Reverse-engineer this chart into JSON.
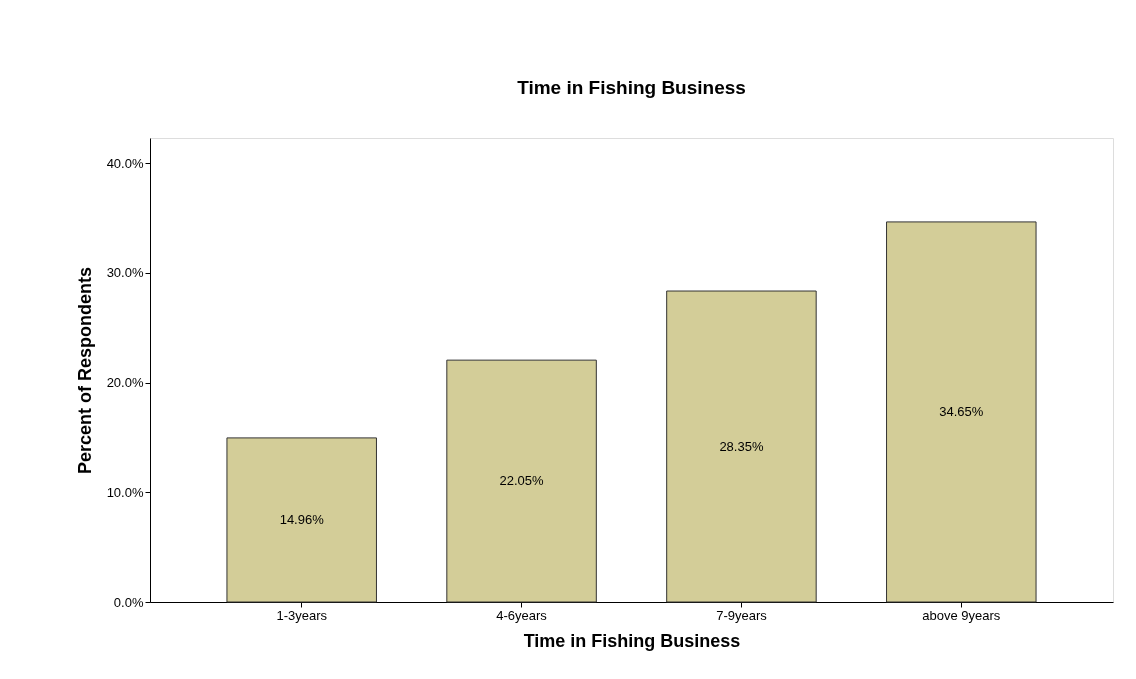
{
  "chart_data": {
    "type": "bar",
    "title": "Time in Fishing Business",
    "xlabel": "Time in Fishing Business",
    "ylabel": "Percent of Respondents",
    "categories": [
      "1-3years",
      "4-6years",
      "7-9years",
      "above 9years"
    ],
    "values": [
      14.96,
      22.05,
      28.35,
      34.65
    ],
    "value_labels": [
      "14.96%",
      "22.05%",
      "28.35%",
      "34.65%"
    ],
    "color": "#d3cd98",
    "ylim": [
      0,
      42.3
    ],
    "yticks": [
      {
        "value": 0,
        "label": "0.0%"
      },
      {
        "value": 10,
        "label": "10.0%"
      },
      {
        "value": 20,
        "label": "20.0%"
      },
      {
        "value": 30,
        "label": "30.0%"
      },
      {
        "value": 40,
        "label": "40.0%"
      }
    ],
    "grid": false
  }
}
